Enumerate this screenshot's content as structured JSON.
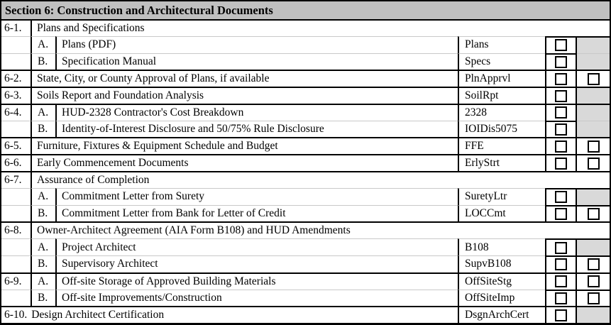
{
  "title": "Section 6: Construction and Architectural Documents",
  "colors": {
    "header_bg": "#c0c0c0",
    "shaded_cell": "#d9d9d9",
    "grid_minor": "#c9c9c9",
    "grid_major": "#000000"
  },
  "rows": [
    {
      "num": "6-1.",
      "letter": "",
      "text": "Plans and Specifications",
      "code": "",
      "layout": "group",
      "divider": "major",
      "chk1": false,
      "chk2": "none"
    },
    {
      "num": "",
      "letter": "A.",
      "text": "Plans (PDF)",
      "code": "Plans",
      "layout": "sub",
      "divider": "minor",
      "chk1": true,
      "chk2": "shaded"
    },
    {
      "num": "",
      "letter": "B.",
      "text": "Specification Manual",
      "code": "Specs",
      "layout": "sub",
      "divider": "minor",
      "chk1": true,
      "chk2": "shaded"
    },
    {
      "num": "6-2.",
      "letter": "",
      "text": "State, City, or County Approval of Plans, if available",
      "code": "PlnApprvl",
      "layout": "item",
      "divider": "major",
      "chk1": true,
      "chk2": "box"
    },
    {
      "num": "6-3.",
      "letter": "",
      "text": "Soils Report and Foundation Analysis",
      "code": "SoilRpt",
      "layout": "item",
      "divider": "major",
      "chk1": true,
      "chk2": "shaded"
    },
    {
      "num": "6-4.",
      "letter": "A.",
      "text": "HUD-2328 Contractor's Cost Breakdown",
      "code": "2328",
      "layout": "sub",
      "divider": "major",
      "chk1": true,
      "chk2": "shaded"
    },
    {
      "num": "",
      "letter": "B.",
      "text": "Identity-of-Interest Disclosure and 50/75% Rule Disclosure",
      "code": "IOIDis5075",
      "layout": "sub",
      "divider": "minor",
      "chk1": true,
      "chk2": "shaded"
    },
    {
      "num": "6-5.",
      "letter": "",
      "text": "Furniture, Fixtures & Equipment Schedule and Budget",
      "code": "FFE",
      "layout": "item",
      "divider": "major",
      "chk1": true,
      "chk2": "box"
    },
    {
      "num": "6-6.",
      "letter": "",
      "text": "Early Commencement Documents",
      "code": "ErlyStrt",
      "layout": "item",
      "divider": "major",
      "chk1": true,
      "chk2": "box"
    },
    {
      "num": "6-7.",
      "letter": "",
      "text": "Assurance of Completion",
      "code": "",
      "layout": "group",
      "divider": "major",
      "chk1": false,
      "chk2": "none"
    },
    {
      "num": "",
      "letter": "A.",
      "text": "Commitment Letter from Surety",
      "code": "SuretyLtr",
      "layout": "sub",
      "divider": "minor",
      "chk1": true,
      "chk2": "shaded"
    },
    {
      "num": "",
      "letter": "B.",
      "text": "Commitment Letter from Bank for Letter of Credit",
      "code": "LOCCmt",
      "layout": "sub",
      "divider": "minor",
      "chk1": true,
      "chk2": "box"
    },
    {
      "num": "6-8.",
      "letter": "",
      "text": "Owner-Architect Agreement (AIA Form B108) and HUD Amendments",
      "code": "",
      "layout": "group",
      "divider": "major",
      "chk1": false,
      "chk2": "none"
    },
    {
      "num": "",
      "letter": "A.",
      "text": "Project Architect",
      "code": "B108",
      "layout": "sub",
      "divider": "minor",
      "chk1": true,
      "chk2": "shaded"
    },
    {
      "num": "",
      "letter": "B.",
      "text": "Supervisory Architect",
      "code": "SupvB108",
      "layout": "sub",
      "divider": "minor",
      "chk1": true,
      "chk2": "box"
    },
    {
      "num": "6-9.",
      "letter": "A.",
      "text": "Off-site Storage of Approved Building Materials",
      "code": "OffSiteStg",
      "layout": "sub",
      "divider": "major",
      "chk1": true,
      "chk2": "box"
    },
    {
      "num": "",
      "letter": "B.",
      "text": "Off-site Improvements/Construction",
      "code": "OffSiteImp",
      "layout": "sub",
      "divider": "minor",
      "chk1": true,
      "chk2": "box"
    },
    {
      "num": "6-10.",
      "letter": "",
      "text": "Design Architect Certification",
      "code": "DsgnArchCert",
      "layout": "fullmerge",
      "divider": "major",
      "chk1": true,
      "chk2": "shaded"
    }
  ]
}
